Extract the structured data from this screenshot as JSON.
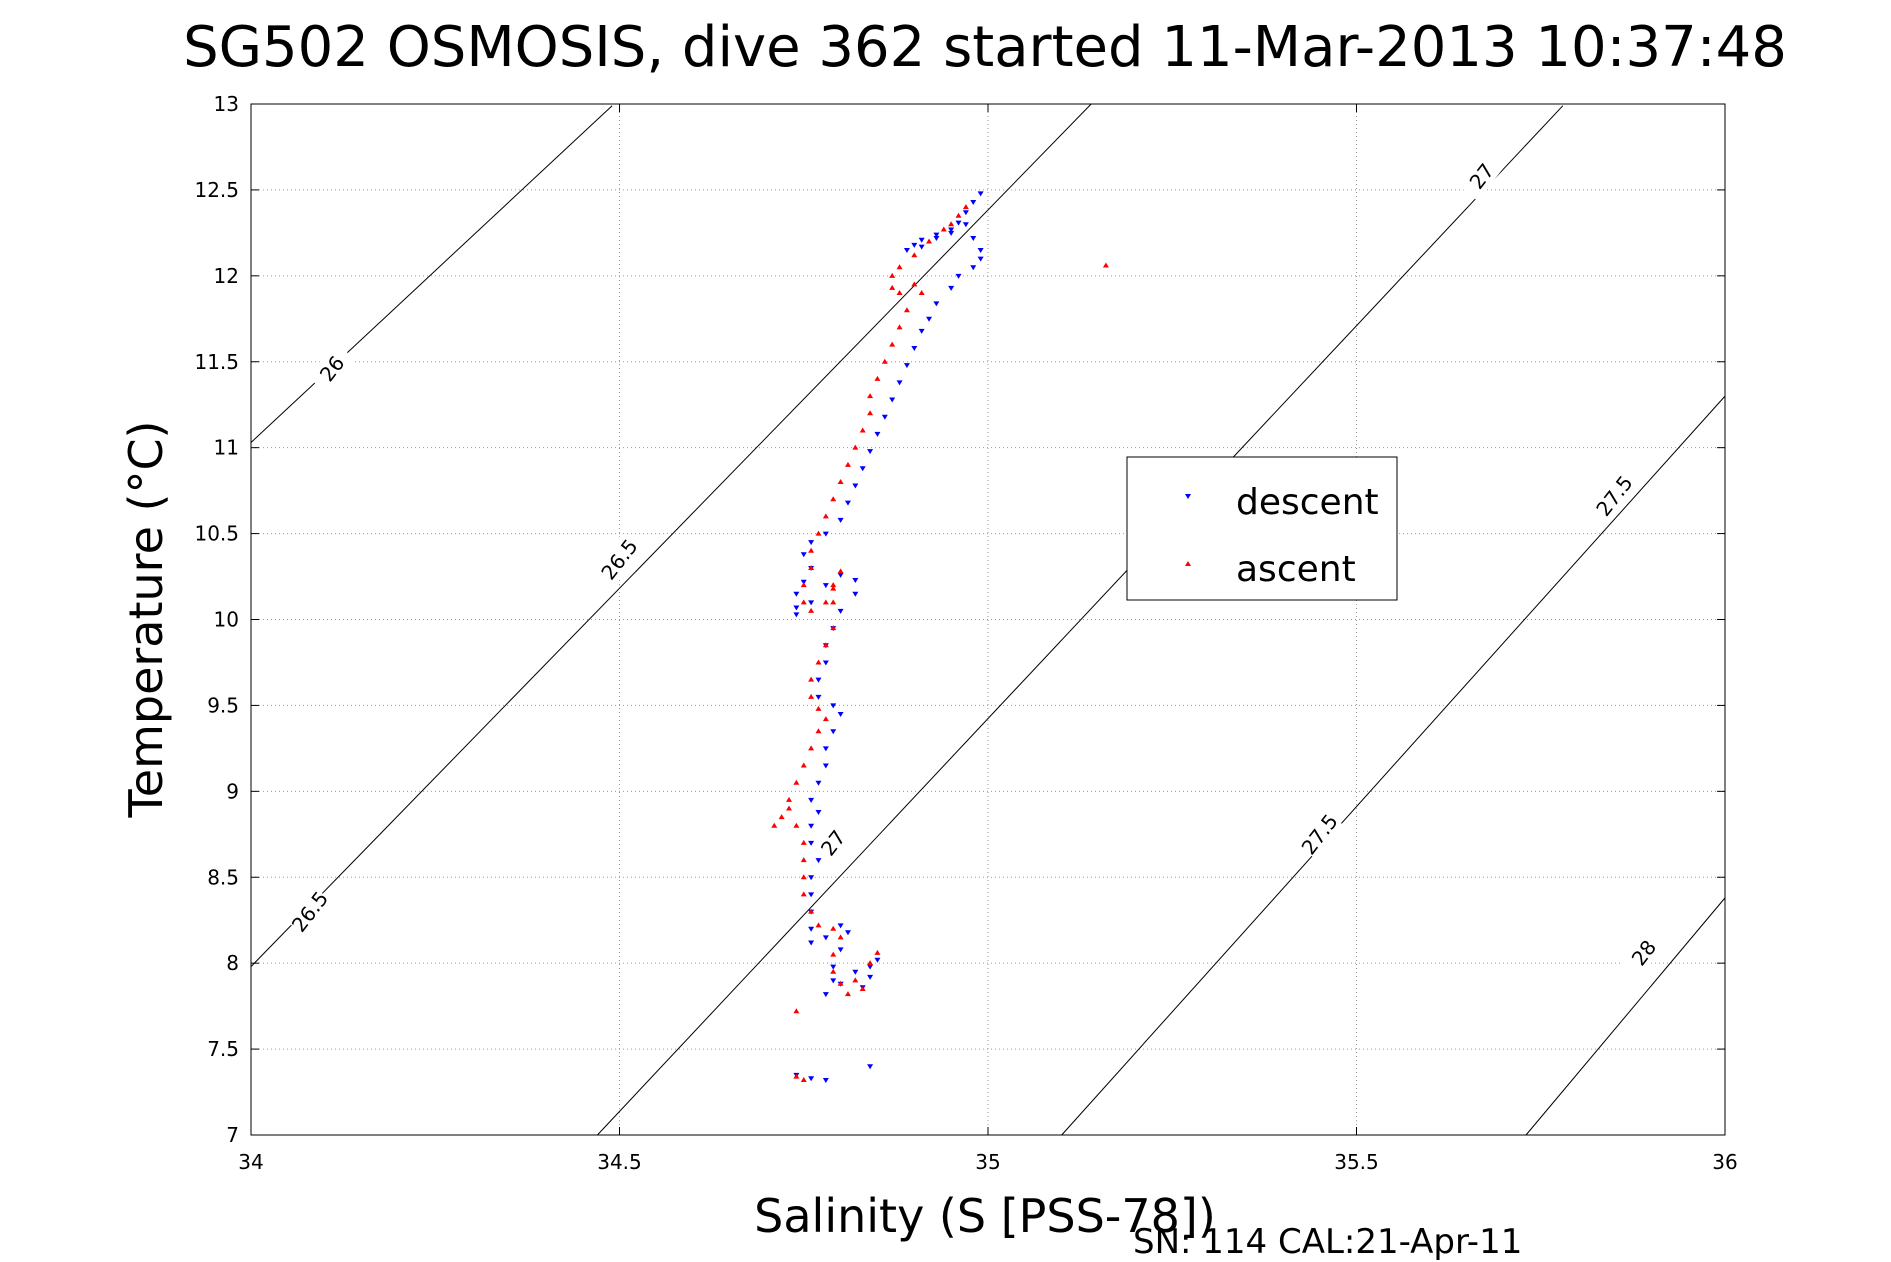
{
  "chart_data": {
    "type": "scatter",
    "title": "SG502 OSMOSIS, dive 362 started 11-Mar-2013 10:37:48",
    "xlabel": "Salinity (S [PSS-78])",
    "ylabel": "Temperature (°C)",
    "xlim": [
      34,
      36
    ],
    "ylim": [
      7,
      13
    ],
    "x_ticks": [
      "34",
      "34.5",
      "35",
      "35.5",
      "36"
    ],
    "y_ticks": [
      "7",
      "7.5",
      "8",
      "8.5",
      "9",
      "9.5",
      "10",
      "10.5",
      "11",
      "11.5",
      "12",
      "12.5",
      "13"
    ],
    "grid": true,
    "legend_position": "right-center",
    "density_contours": [
      {
        "level": "26",
        "label_points": [
          [
            34.11,
            11.46
          ]
        ]
      },
      {
        "level": "26.5",
        "label_points": [
          [
            34.08,
            8.3
          ],
          [
            34.5,
            10.35
          ]
        ]
      },
      {
        "level": "27",
        "label_points": [
          [
            34.79,
            8.7
          ],
          [
            35.67,
            12.58
          ]
        ]
      },
      {
        "level": "27.5",
        "label_points": [
          [
            35.45,
            8.75
          ],
          [
            35.85,
            10.72
          ]
        ]
      },
      {
        "level": "28",
        "label_points": [
          [
            35.89,
            8.06
          ]
        ]
      }
    ],
    "series": [
      {
        "name": "descent",
        "color": "#0000ff",
        "marker": "triangle-down",
        "points": [
          [
            34.99,
            12.48
          ],
          [
            34.98,
            12.43
          ],
          [
            34.97,
            12.37
          ],
          [
            34.96,
            12.31
          ],
          [
            34.95,
            12.27
          ],
          [
            34.93,
            12.24
          ],
          [
            34.91,
            12.21
          ],
          [
            34.9,
            12.18
          ],
          [
            34.89,
            12.15
          ],
          [
            34.91,
            12.17
          ],
          [
            34.93,
            12.22
          ],
          [
            34.95,
            12.25
          ],
          [
            34.97,
            12.3
          ],
          [
            34.98,
            12.22
          ],
          [
            34.99,
            12.15
          ],
          [
            34.99,
            12.1
          ],
          [
            34.98,
            12.05
          ],
          [
            34.96,
            12.0
          ],
          [
            34.95,
            11.93
          ],
          [
            34.93,
            11.84
          ],
          [
            34.92,
            11.75
          ],
          [
            34.91,
            11.68
          ],
          [
            34.9,
            11.58
          ],
          [
            34.89,
            11.48
          ],
          [
            34.88,
            11.38
          ],
          [
            34.87,
            11.28
          ],
          [
            34.86,
            11.18
          ],
          [
            34.85,
            11.08
          ],
          [
            34.84,
            10.98
          ],
          [
            34.83,
            10.88
          ],
          [
            34.82,
            10.78
          ],
          [
            34.81,
            10.68
          ],
          [
            34.8,
            10.58
          ],
          [
            34.78,
            10.5
          ],
          [
            34.76,
            10.45
          ],
          [
            34.75,
            10.38
          ],
          [
            34.76,
            10.3
          ],
          [
            34.75,
            10.22
          ],
          [
            34.74,
            10.15
          ],
          [
            34.74,
            10.07
          ],
          [
            34.74,
            10.03
          ],
          [
            34.76,
            10.1
          ],
          [
            34.78,
            10.2
          ],
          [
            34.8,
            10.26
          ],
          [
            34.82,
            10.23
          ],
          [
            34.82,
            10.15
          ],
          [
            34.8,
            10.05
          ],
          [
            34.79,
            9.95
          ],
          [
            34.78,
            9.85
          ],
          [
            34.78,
            9.75
          ],
          [
            34.77,
            9.65
          ],
          [
            34.77,
            9.55
          ],
          [
            34.79,
            9.5
          ],
          [
            34.8,
            9.45
          ],
          [
            34.79,
            9.35
          ],
          [
            34.78,
            9.25
          ],
          [
            34.78,
            9.15
          ],
          [
            34.77,
            9.05
          ],
          [
            34.76,
            8.95
          ],
          [
            34.77,
            8.88
          ],
          [
            34.76,
            8.8
          ],
          [
            34.76,
            8.7
          ],
          [
            34.77,
            8.6
          ],
          [
            34.76,
            8.5
          ],
          [
            34.76,
            8.4
          ],
          [
            34.76,
            8.3
          ],
          [
            34.76,
            8.2
          ],
          [
            34.76,
            8.12
          ],
          [
            34.78,
            8.15
          ],
          [
            34.8,
            8.22
          ],
          [
            34.81,
            8.18
          ],
          [
            34.8,
            8.08
          ],
          [
            34.79,
            7.98
          ],
          [
            34.79,
            7.9
          ],
          [
            34.78,
            7.82
          ],
          [
            34.8,
            7.88
          ],
          [
            34.82,
            7.95
          ],
          [
            34.84,
            7.98
          ],
          [
            34.85,
            8.02
          ],
          [
            34.84,
            7.92
          ],
          [
            34.83,
            7.86
          ],
          [
            34.74,
            7.35
          ],
          [
            34.76,
            7.33
          ],
          [
            34.78,
            7.32
          ],
          [
            34.84,
            7.4
          ]
        ]
      },
      {
        "name": "ascent",
        "color": "#ff0000",
        "marker": "triangle-up",
        "points": [
          [
            34.97,
            12.4
          ],
          [
            34.96,
            12.35
          ],
          [
            34.95,
            12.3
          ],
          [
            34.94,
            12.27
          ],
          [
            34.92,
            12.2
          ],
          [
            34.9,
            12.12
          ],
          [
            34.88,
            12.05
          ],
          [
            34.87,
            12.0
          ],
          [
            34.87,
            11.93
          ],
          [
            34.88,
            11.9
          ],
          [
            34.9,
            11.95
          ],
          [
            34.91,
            11.9
          ],
          [
            34.89,
            11.8
          ],
          [
            34.88,
            11.7
          ],
          [
            34.87,
            11.6
          ],
          [
            34.86,
            11.5
          ],
          [
            34.85,
            11.4
          ],
          [
            34.84,
            11.3
          ],
          [
            34.84,
            11.2
          ],
          [
            34.83,
            11.1
          ],
          [
            34.82,
            11.0
          ],
          [
            34.81,
            10.9
          ],
          [
            34.8,
            10.8
          ],
          [
            34.79,
            10.7
          ],
          [
            34.78,
            10.6
          ],
          [
            34.77,
            10.5
          ],
          [
            34.76,
            10.4
          ],
          [
            34.76,
            10.3
          ],
          [
            34.75,
            10.2
          ],
          [
            34.75,
            10.1
          ],
          [
            34.76,
            10.05
          ],
          [
            34.78,
            10.1
          ],
          [
            34.79,
            10.18
          ],
          [
            34.8,
            10.28
          ],
          [
            34.79,
            10.2
          ],
          [
            34.79,
            10.1
          ],
          [
            34.79,
            9.95
          ],
          [
            34.78,
            9.85
          ],
          [
            34.77,
            9.75
          ],
          [
            34.76,
            9.65
          ],
          [
            34.76,
            9.55
          ],
          [
            34.77,
            9.48
          ],
          [
            34.78,
            9.42
          ],
          [
            34.77,
            9.35
          ],
          [
            34.76,
            9.25
          ],
          [
            34.75,
            9.15
          ],
          [
            34.74,
            9.05
          ],
          [
            34.73,
            8.95
          ],
          [
            34.72,
            8.85
          ],
          [
            34.71,
            8.8
          ],
          [
            34.73,
            8.9
          ],
          [
            34.74,
            8.8
          ],
          [
            34.75,
            8.7
          ],
          [
            34.75,
            8.6
          ],
          [
            34.75,
            8.5
          ],
          [
            34.75,
            8.4
          ],
          [
            34.76,
            8.3
          ],
          [
            34.77,
            8.22
          ],
          [
            34.79,
            8.2
          ],
          [
            34.8,
            8.15
          ],
          [
            34.79,
            8.05
          ],
          [
            34.79,
            7.95
          ],
          [
            34.8,
            7.88
          ],
          [
            34.82,
            7.9
          ],
          [
            34.84,
            8.0
          ],
          [
            34.85,
            8.06
          ],
          [
            34.83,
            7.85
          ],
          [
            34.81,
            7.82
          ],
          [
            34.74,
            7.72
          ],
          [
            34.74,
            7.34
          ],
          [
            34.75,
            7.32
          ],
          [
            35.16,
            12.06
          ]
        ]
      }
    ]
  },
  "footer_text": "SN: 114  CAL:21-Apr-11"
}
